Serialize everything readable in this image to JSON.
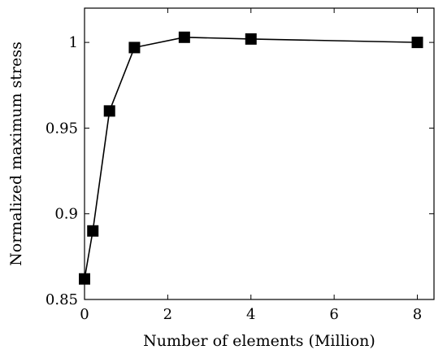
{
  "chart_data": {
    "type": "line",
    "title": "",
    "xlabel": "Number of elements (Million)",
    "ylabel": "Normalized maximum stress",
    "xlim": [
      0,
      8.4
    ],
    "ylim": [
      0.85,
      1.02
    ],
    "x_ticks": [
      0,
      2,
      4,
      6,
      8
    ],
    "y_ticks": [
      0.85,
      0.9,
      0.95,
      1
    ],
    "x_tick_labels": [
      "0",
      "2",
      "4",
      "6",
      "8"
    ],
    "y_tick_labels": [
      "0.85",
      "0.9",
      "0.95",
      "1"
    ],
    "grid": false,
    "marker": "square",
    "colors": {
      "series": "#000000"
    },
    "series": [
      {
        "x": [
          0,
          0.2,
          0.6,
          1.2,
          2.4,
          4.0,
          8.0
        ],
        "y": [
          0.862,
          0.89,
          0.96,
          0.997,
          1.003,
          1.002,
          1.0
        ]
      }
    ]
  }
}
